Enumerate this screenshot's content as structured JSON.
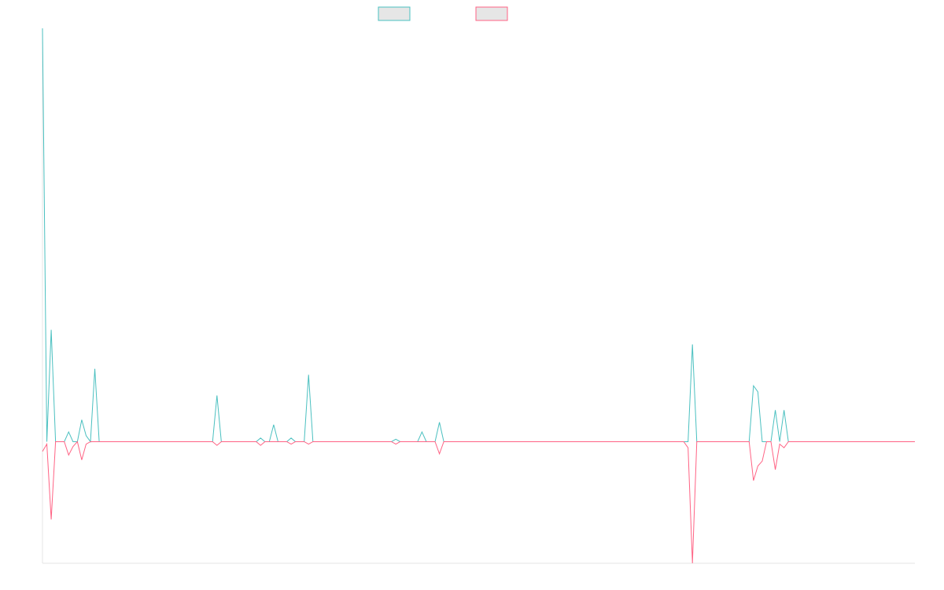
{
  "chart_data": {
    "type": "line",
    "title": "",
    "xlabel": "",
    "ylabel": "",
    "grid": false,
    "legend": {
      "placement": "top-center",
      "series_names_shown": false
    },
    "x_range": [
      0,
      200
    ],
    "ylim": [
      -100,
      340
    ],
    "series": [
      {
        "name": "",
        "color": "#4bc0c0",
        "fill": "#e6e6e6",
        "values": [
          340,
          0,
          92,
          0,
          0,
          0,
          8,
          0,
          0,
          18,
          5,
          0,
          60,
          0,
          0,
          0,
          0,
          0,
          0,
          0,
          0,
          0,
          0,
          0,
          0,
          0,
          0,
          0,
          0,
          0,
          0,
          0,
          0,
          0,
          0,
          0,
          0,
          0,
          0,
          0,
          38,
          0,
          0,
          0,
          0,
          0,
          0,
          0,
          0,
          0,
          3,
          0,
          0,
          14,
          0,
          0,
          0,
          3,
          0,
          0,
          0,
          55,
          0,
          0,
          0,
          0,
          0,
          0,
          0,
          0,
          0,
          0,
          0,
          0,
          0,
          0,
          0,
          0,
          0,
          0,
          0,
          2,
          0,
          0,
          0,
          0,
          0,
          8,
          0,
          0,
          0,
          16,
          0,
          0,
          0,
          0,
          0,
          0,
          0,
          0,
          0,
          0,
          0,
          0,
          0,
          0,
          0,
          0,
          0,
          0,
          0,
          0,
          0,
          0,
          0,
          0,
          0,
          0,
          0,
          0,
          0,
          0,
          0,
          0,
          0,
          0,
          0,
          0,
          0,
          0,
          0,
          0,
          0,
          0,
          0,
          0,
          0,
          0,
          0,
          0,
          0,
          0,
          0,
          0,
          0,
          0,
          0,
          0,
          0,
          80,
          0,
          0,
          0,
          0,
          0,
          0,
          0,
          0,
          0,
          0,
          0,
          0,
          0,
          46,
          41,
          0,
          0,
          0,
          26,
          0,
          26,
          0,
          0,
          0,
          0,
          0,
          0,
          0,
          0,
          0,
          0,
          0,
          0,
          0,
          0,
          0,
          0,
          0,
          0,
          0,
          0,
          0,
          0,
          0,
          0,
          0,
          0,
          0,
          0,
          0,
          0
        ]
      },
      {
        "name": "",
        "color": "#ff6384",
        "fill": "#e6e6e6",
        "values": [
          -8,
          -2,
          -64,
          0,
          0,
          0,
          -11,
          -4,
          0,
          -15,
          -2,
          0,
          0,
          0,
          0,
          0,
          0,
          0,
          0,
          0,
          0,
          0,
          0,
          0,
          0,
          0,
          0,
          0,
          0,
          0,
          0,
          0,
          0,
          0,
          0,
          0,
          0,
          0,
          0,
          0,
          -3,
          0,
          0,
          0,
          0,
          0,
          0,
          0,
          0,
          0,
          -3,
          0,
          0,
          0,
          0,
          0,
          0,
          -2,
          0,
          0,
          0,
          -2,
          0,
          0,
          0,
          0,
          0,
          0,
          0,
          0,
          0,
          0,
          0,
          0,
          0,
          0,
          0,
          0,
          0,
          0,
          0,
          -2,
          0,
          0,
          0,
          0,
          0,
          0,
          0,
          0,
          0,
          -10,
          0,
          0,
          0,
          0,
          0,
          0,
          0,
          0,
          0,
          0,
          0,
          0,
          0,
          0,
          0,
          0,
          0,
          0,
          0,
          0,
          0,
          0,
          0,
          0,
          0,
          0,
          0,
          0,
          0,
          0,
          0,
          0,
          0,
          0,
          0,
          0,
          0,
          0,
          0,
          0,
          0,
          0,
          0,
          0,
          0,
          0,
          0,
          0,
          0,
          0,
          0,
          0,
          0,
          0,
          0,
          0,
          -5,
          -100,
          0,
          0,
          0,
          0,
          0,
          0,
          0,
          0,
          0,
          0,
          0,
          0,
          0,
          -32,
          -20,
          -16,
          0,
          0,
          -23,
          -2,
          -5,
          0,
          0,
          0,
          0,
          0,
          0,
          0,
          0,
          0,
          0,
          0,
          0,
          0,
          0,
          0,
          0,
          0,
          0,
          0,
          0,
          0,
          0,
          0,
          0,
          0,
          0,
          0,
          0,
          0,
          0
        ]
      }
    ]
  }
}
